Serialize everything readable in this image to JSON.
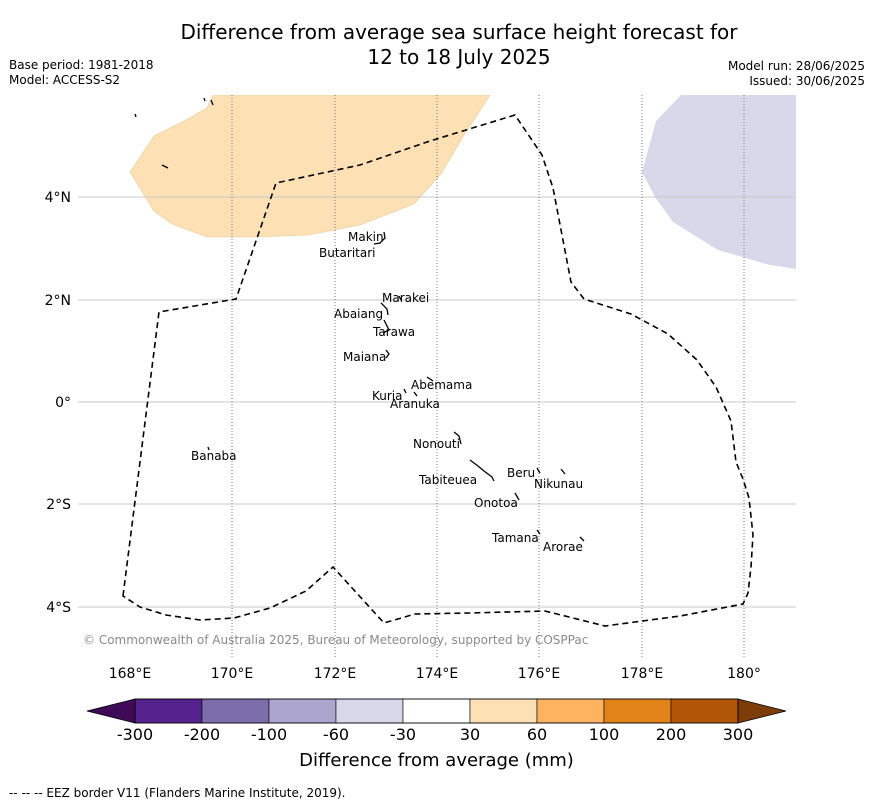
{
  "title_line1": "Difference from average sea surface height forecast for",
  "title_line2": "12 to 18 July 2025",
  "meta_left": {
    "base_period": "Base period: 1981-2018",
    "model": "Model: ACCESS-S2"
  },
  "meta_right": {
    "model_run": "Model run: 28/06/2025",
    "issued": "Issued: 30/06/2025"
  },
  "copyright": "© Commonwealth of Australia 2025, Bureau of Meteorology, supported by COSPPac",
  "lon_ticks": [
    "168°E",
    "170°E",
    "172°E",
    "174°E",
    "176°E",
    "178°E",
    "180°"
  ],
  "lat_ticks": [
    "4°N",
    "2°N",
    "0°",
    "2°S",
    "4°S"
  ],
  "islands": [
    {
      "name": "Makin",
      "lon": 172.95,
      "lat": 3.2
    },
    {
      "name": "Butaritari",
      "lon": 172.85,
      "lat": 3.05
    },
    {
      "name": "Marakei",
      "lon": 173.25,
      "lat": 2.0
    },
    {
      "name": "Abaiang",
      "lon": 172.95,
      "lat": 1.85
    },
    {
      "name": "Tarawa",
      "lon": 173.0,
      "lat": 1.4
    },
    {
      "name": "Maiana",
      "lon": 173.0,
      "lat": 0.95
    },
    {
      "name": "Abemama",
      "lon": 173.85,
      "lat": 0.4
    },
    {
      "name": "Kuria",
      "lon": 173.4,
      "lat": 0.22
    },
    {
      "name": "Aranuka",
      "lon": 173.6,
      "lat": 0.18
    },
    {
      "name": "Nonouti",
      "lon": 174.4,
      "lat": -0.65
    },
    {
      "name": "Banaba",
      "lon": 169.55,
      "lat": -0.85
    },
    {
      "name": "Tabiteuea",
      "lon": 174.8,
      "lat": -1.3
    },
    {
      "name": "Beru",
      "lon": 175.98,
      "lat": -1.33
    },
    {
      "name": "Nikunau",
      "lon": 176.45,
      "lat": -1.35
    },
    {
      "name": "Onotoa",
      "lon": 175.55,
      "lat": -1.85
    },
    {
      "name": "Tamana",
      "lon": 175.98,
      "lat": -2.5
    },
    {
      "name": "Arorae",
      "lon": 176.8,
      "lat": -2.65
    }
  ],
  "legend": {
    "title": "Difference from average (mm)",
    "tick_labels": [
      "-300",
      "-200",
      "-100",
      "-60",
      "-30",
      "30",
      "60",
      "100",
      "200",
      "300"
    ],
    "colors": [
      "#56228d",
      "#7d6eab",
      "#aca6ce",
      "#d8d8ea",
      "#ffffff",
      "#fee0b5",
      "#fdb35f",
      "#e3841a",
      "#b15607"
    ],
    "under_color": "#3f0a58",
    "over_color": "#7e3c09"
  },
  "field_colors": {
    "positive_30_60": "#fee0b5",
    "negative_30_60": "#d8d8ea"
  },
  "footer": "--  --  -- EEZ border V11 (Flanders Marine Institute, 2019)."
}
